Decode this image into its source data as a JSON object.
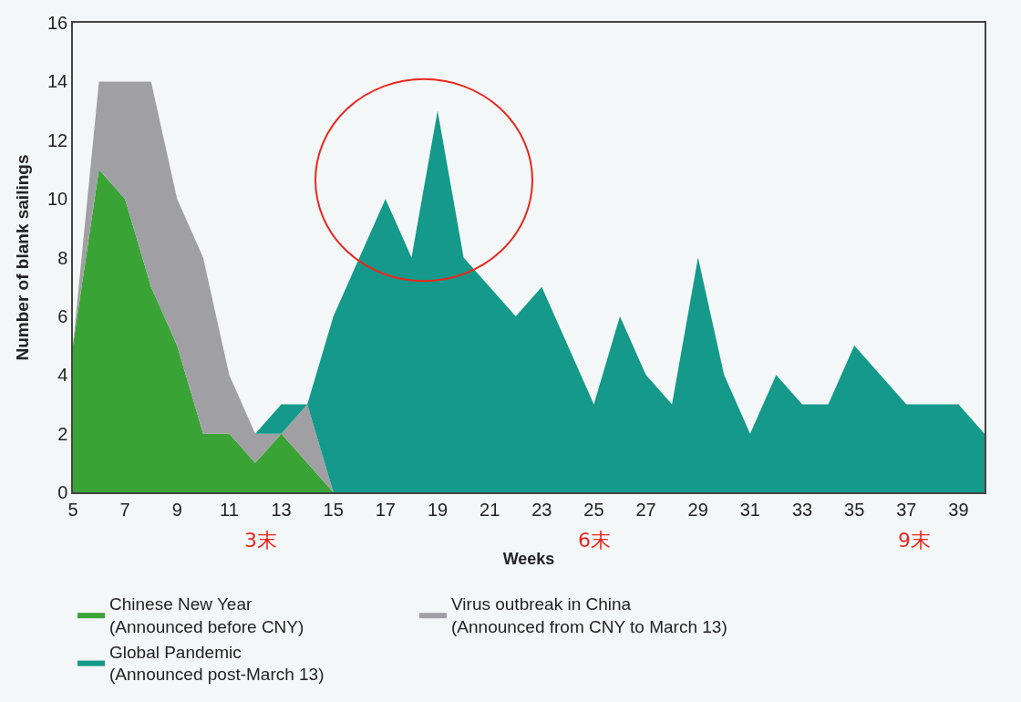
{
  "chart_data": {
    "type": "area",
    "stacked": true,
    "xlabel": "Weeks",
    "ylabel": "Number of blank sailings",
    "xlim": [
      5,
      40
    ],
    "xticks": [
      5,
      7,
      9,
      11,
      13,
      15,
      17,
      19,
      21,
      23,
      25,
      27,
      29,
      31,
      33,
      35,
      37,
      39
    ],
    "ylim": [
      0,
      16
    ],
    "yticks": [
      0,
      2,
      4,
      6,
      8,
      10,
      12,
      14,
      16
    ],
    "grid": false,
    "legend": "bottom",
    "x": [
      5,
      6,
      7,
      8,
      9,
      10,
      11,
      12,
      13,
      14,
      15,
      16,
      17,
      18,
      19,
      20,
      21,
      22,
      23,
      24,
      25,
      26,
      27,
      28,
      29,
      30,
      31,
      32,
      33,
      34,
      35,
      36,
      37,
      38,
      39,
      40
    ],
    "series": [
      {
        "name": "Chinese New Year\n(Announced before CNY)",
        "color": "#3aa335",
        "values": [
          5,
          11,
          10,
          7,
          5,
          2,
          2,
          1,
          2,
          1,
          0,
          0,
          0,
          0,
          0,
          0,
          0,
          0,
          0,
          0,
          0,
          0,
          0,
          0,
          0,
          0,
          0,
          0,
          0,
          0,
          0,
          0,
          0,
          0,
          0,
          0
        ]
      },
      {
        "name": "Virus outbreak in China\n(Announced from CNY to March 13)",
        "color": "#a0a0a4",
        "values": [
          0,
          3,
          4,
          7,
          5,
          6,
          2,
          1,
          0,
          2,
          0,
          0,
          0,
          0,
          0,
          0,
          0,
          0,
          0,
          0,
          0,
          0,
          0,
          0,
          0,
          0,
          0,
          0,
          0,
          0,
          0,
          0,
          0,
          0,
          0,
          0
        ]
      },
      {
        "name": "Global Pandemic\n(Announced post-March 13)",
        "color": "#14998a",
        "values": [
          null,
          null,
          null,
          null,
          null,
          null,
          null,
          0,
          1,
          0,
          6,
          8,
          10,
          8,
          13,
          8,
          7,
          6,
          7,
          5,
          3,
          6,
          4,
          3,
          8,
          4,
          2,
          4,
          3,
          3,
          5,
          4,
          3,
          3,
          3,
          2
        ]
      }
    ],
    "annotations": [
      "3末",
      "6末",
      "9末"
    ]
  }
}
